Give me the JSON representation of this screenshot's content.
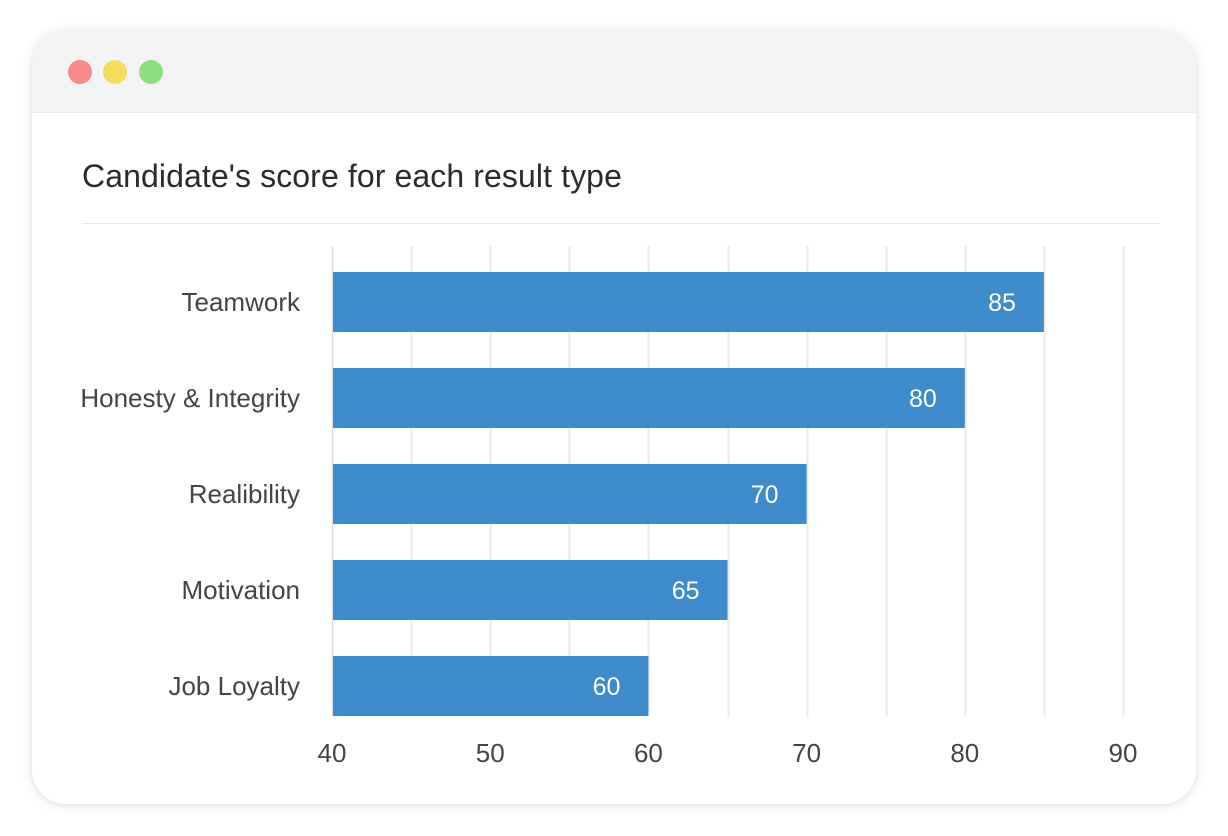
{
  "window": {
    "controls": [
      "close",
      "minimize",
      "maximize"
    ],
    "control_colors": {
      "close": "#f78a87",
      "minimize": "#f5dd5b",
      "maximize": "#8ddf7e"
    }
  },
  "chart_data": {
    "type": "bar",
    "orientation": "horizontal",
    "title": "Candidate's score for each result type",
    "categories": [
      "Teamwork",
      "Honesty & Integrity",
      "Realibility",
      "Motivation",
      "Job Loyalty"
    ],
    "values": [
      85,
      80,
      70,
      65,
      60
    ],
    "value_labels": [
      "85",
      "80",
      "70",
      "65",
      "60"
    ],
    "xlim": [
      40,
      90
    ],
    "xticks": [
      40,
      50,
      60,
      70,
      80,
      90
    ],
    "xtick_labels": [
      "40",
      "50",
      "60",
      "70",
      "80",
      "90"
    ],
    "grid": true,
    "bar_color": "#3d8bca",
    "grid_color": "#e8e8e8",
    "text_color": "#444444",
    "xlabel": "",
    "ylabel": ""
  }
}
